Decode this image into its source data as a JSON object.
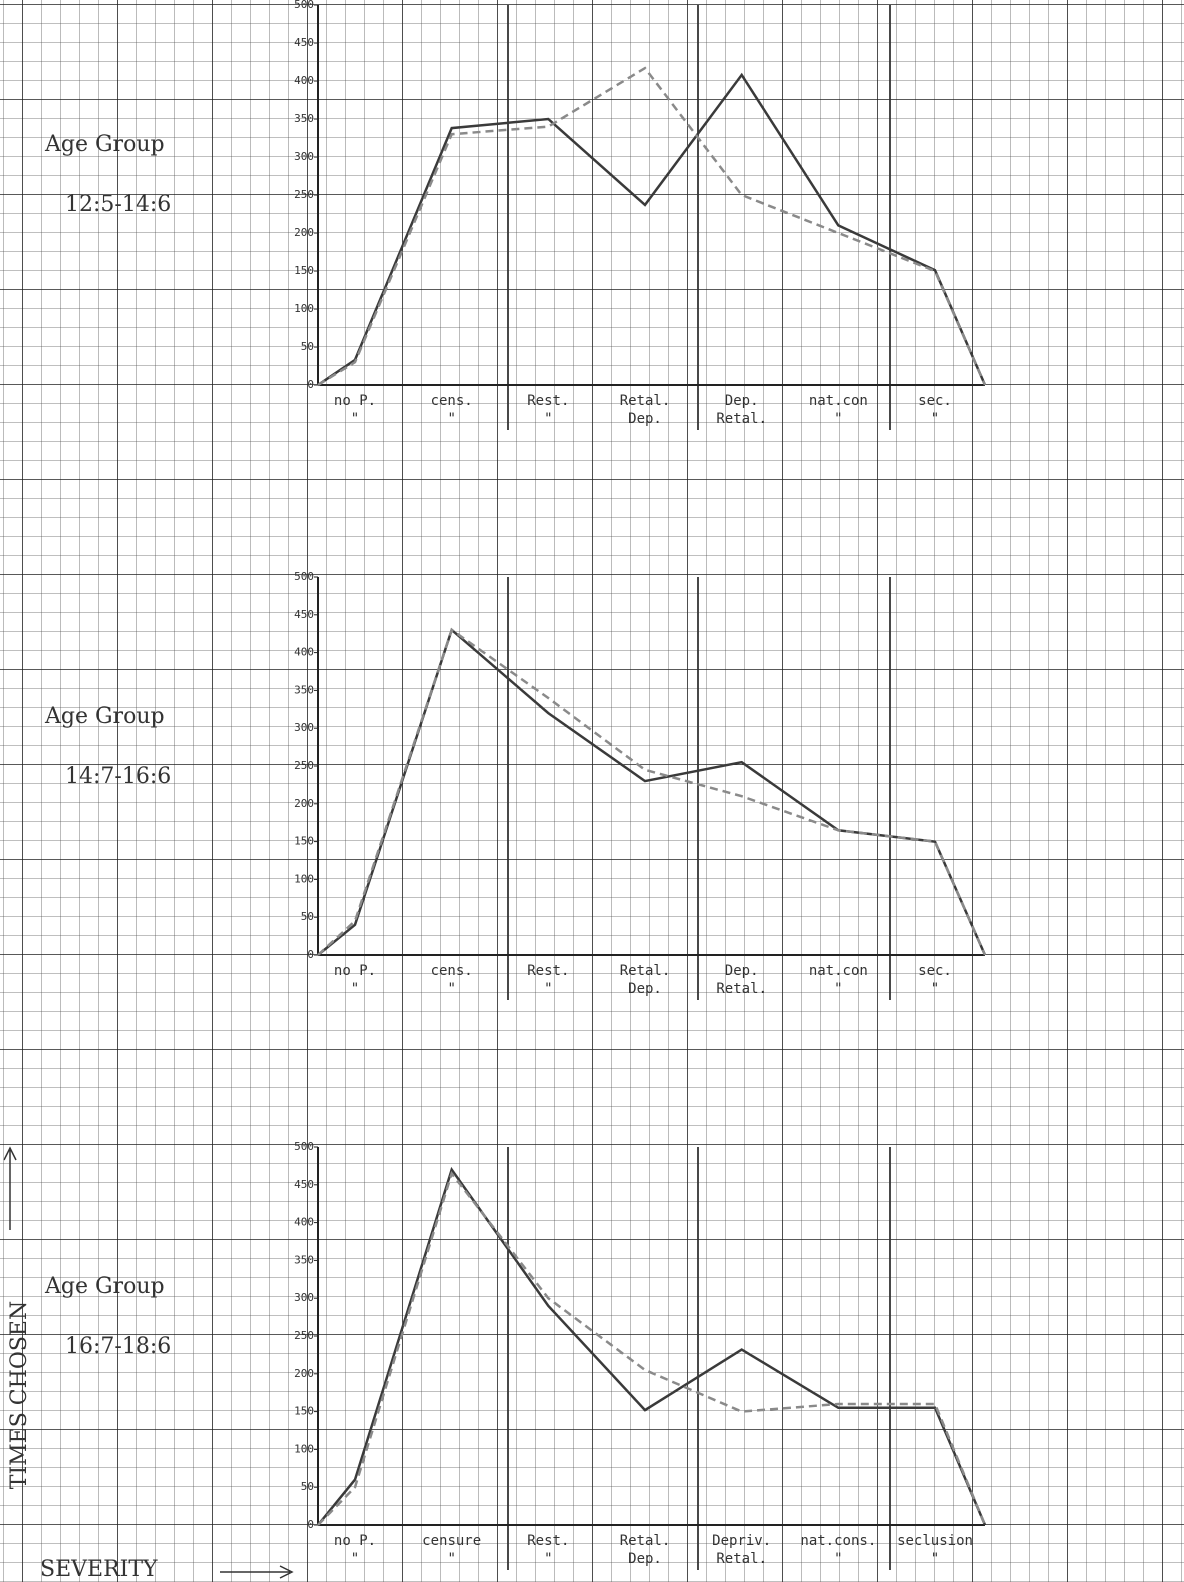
{
  "chart_data": [
    {
      "type": "line",
      "title": "Age Group",
      "subtitle": "12:5-14:6",
      "categories": [
        null,
        "no P.",
        "cens.",
        "Rest.",
        "Retal.",
        "Dep.",
        "nat.con",
        "sec.",
        null
      ],
      "sublabels": [
        null,
        "\"",
        "\"",
        "\"",
        "Dep.",
        "Retal.",
        "\"",
        "\"",
        null
      ],
      "series": [
        {
          "color": "#3a3a3a",
          "dash": false,
          "values": [
            0,
            33,
            338,
            350,
            237,
            408,
            210,
            151,
            0
          ]
        },
        {
          "color": "#8a8a8a",
          "dash": true,
          "values": [
            0,
            30,
            330,
            340,
            417,
            250,
            200,
            150,
            0
          ]
        }
      ],
      "ylim": [
        0,
        500
      ],
      "yticks": [
        0,
        50,
        100,
        150,
        200,
        250,
        300,
        350,
        400,
        450,
        500
      ]
    },
    {
      "type": "line",
      "title": "Age Group",
      "subtitle": "14:7-16:6",
      "categories": [
        null,
        "no P.",
        "cens.",
        "Rest.",
        "Retal.",
        "Dep.",
        "nat.con",
        "sec.",
        null
      ],
      "sublabels": [
        null,
        "\"",
        "\"",
        "\"",
        "Dep.",
        "Retal.",
        "\"",
        "\"",
        null
      ],
      "series": [
        {
          "color": "#3a3a3a",
          "dash": false,
          "values": [
            0,
            40,
            430,
            320,
            230,
            255,
            165,
            150,
            0
          ]
        },
        {
          "color": "#8a8a8a",
          "dash": true,
          "values": [
            0,
            45,
            430,
            340,
            245,
            210,
            165,
            150,
            0
          ]
        }
      ],
      "ylim": [
        0,
        500
      ],
      "yticks": [
        0,
        50,
        100,
        150,
        200,
        250,
        300,
        350,
        400,
        450,
        500
      ]
    },
    {
      "type": "line",
      "title": "Age Group",
      "subtitle": "16:7-18:6",
      "categories": [
        null,
        "no P.",
        "censure",
        "Rest.",
        "Retal.",
        "Depriv.",
        "nat.cons.",
        "seclusion",
        null
      ],
      "sublabels": [
        null,
        "\"",
        "\"",
        "\"",
        "Dep.",
        "Retal.",
        "\"",
        "\"",
        null
      ],
      "series": [
        {
          "color": "#3a3a3a",
          "dash": false,
          "values": [
            0,
            60,
            470,
            290,
            152,
            232,
            155,
            155,
            0
          ]
        },
        {
          "color": "#8a8a8a",
          "dash": true,
          "values": [
            0,
            50,
            465,
            300,
            205,
            150,
            160,
            160,
            0
          ]
        }
      ],
      "ylim": [
        0,
        500
      ],
      "yticks": [
        0,
        50,
        100,
        150,
        200,
        250,
        300,
        350,
        400,
        450,
        500
      ],
      "x_label": "SEVERITY",
      "y_label": "TIMES CHOSEN"
    }
  ]
}
